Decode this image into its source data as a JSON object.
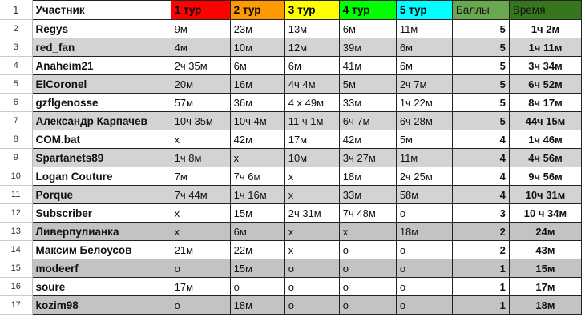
{
  "header": {
    "row_number": "1",
    "columns": [
      "Участник",
      "1 тур",
      "2 тур",
      "3 тур",
      "4 тур",
      "5 тур",
      "Баллы",
      "Время"
    ],
    "colors": [
      "#ffffff",
      "#ff0000",
      "#ff9900",
      "#ffff00",
      "#00ff00",
      "#00ffff",
      "#6aa84f",
      "#38761d"
    ]
  },
  "rows": [
    {
      "n": "2",
      "name": "Regys",
      "r": [
        "9м",
        "23м",
        "13м",
        "6м",
        "11м"
      ],
      "pts": "5",
      "time": "1ч 2м"
    },
    {
      "n": "3",
      "name": "red_fan",
      "r": [
        "4м",
        "10м",
        "12м",
        "39м",
        "6м"
      ],
      "pts": "5",
      "time": "1ч 11м"
    },
    {
      "n": "4",
      "name": "Anaheim21",
      "r": [
        "2ч 35м",
        "6м",
        "6м",
        "41м",
        "6м"
      ],
      "pts": "5",
      "time": "3ч 34м"
    },
    {
      "n": "5",
      "name": "ElCoronel",
      "r": [
        "20м",
        "16м",
        "4ч 4м",
        "5м",
        "2ч 7м"
      ],
      "pts": "5",
      "time": "6ч 52м"
    },
    {
      "n": "6",
      "name": "gzflgenosse",
      "r": [
        "57м",
        "36м",
        "4 х 49м",
        "33м",
        "1ч 22м"
      ],
      "pts": "5",
      "time": "8ч 17м"
    },
    {
      "n": "7",
      "name": "Александр Карпачев",
      "r": [
        "10ч 35м",
        "10ч 4м",
        "11 ч 1м",
        "6ч 7м",
        "6ч 28м"
      ],
      "pts": "5",
      "time": "44ч 15м"
    },
    {
      "n": "8",
      "name": "COM.bat",
      "r": [
        "x",
        "42м",
        "17м",
        "42м",
        "5м"
      ],
      "pts": "4",
      "time": "1ч 46м"
    },
    {
      "n": "9",
      "name": "Spartanets89",
      "r": [
        "1ч 8м",
        "x",
        "10м",
        "3ч 27м",
        "11м"
      ],
      "pts": "4",
      "time": "4ч 56м"
    },
    {
      "n": "10",
      "name": "Logan Couture",
      "r": [
        "7м",
        "7ч 6м",
        "x",
        "18м",
        "2ч 25м"
      ],
      "pts": "4",
      "time": "9ч 56м"
    },
    {
      "n": "11",
      "name": "Porque",
      "r": [
        "7ч 44м",
        "1ч 16м",
        "x",
        "33м",
        "58м"
      ],
      "pts": "4",
      "time": "10ч 31м"
    },
    {
      "n": "12",
      "name": "Subscriber",
      "r": [
        "x",
        "15м",
        "2ч 31м",
        "7ч 48м",
        "o"
      ],
      "pts": "3",
      "time": "10 ч 34м"
    },
    {
      "n": "13",
      "name": "Ливерпулианка",
      "r": [
        "x",
        "6м",
        "x",
        "x",
        "18м"
      ],
      "pts": "2",
      "time": "24м"
    },
    {
      "n": "14",
      "name": "Максим Белоусов",
      "r": [
        "21м",
        "22м",
        "x",
        "o",
        "o"
      ],
      "pts": "2",
      "time": "43м"
    },
    {
      "n": "15",
      "name": "modeerf",
      "r": [
        "o",
        "15м",
        "o",
        "o",
        "o"
      ],
      "pts": "1",
      "time": "15м"
    },
    {
      "n": "16",
      "name": "soure",
      "r": [
        "17м",
        "o",
        "o",
        "o",
        "o"
      ],
      "pts": "1",
      "time": "17м"
    },
    {
      "n": "17",
      "name": "kozim98",
      "r": [
        "o",
        "18м",
        "o",
        "o",
        "o"
      ],
      "pts": "1",
      "time": "18м"
    }
  ]
}
